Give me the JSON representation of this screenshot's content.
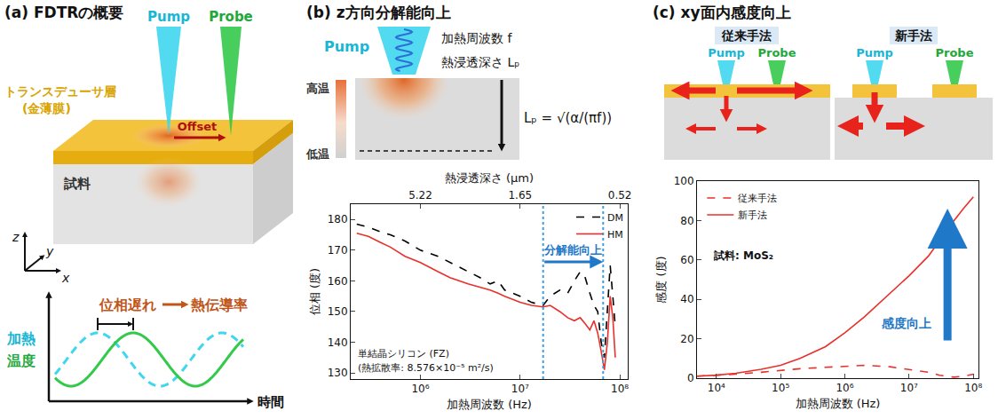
{
  "panels": {
    "a": {
      "title": "(a) FDTRの概要",
      "pump": "Pump",
      "probe": "Probe",
      "transducer": "トランスデューサ層",
      "transducer_note": "(金薄膜)",
      "offset": "Offset",
      "sample": "試料",
      "axes": [
        "z",
        "y",
        "x"
      ],
      "heating": "加熱",
      "temperature": "温度",
      "phase_lag": "位相遅れ",
      "conductivity": "熱伝導率",
      "time": "時間"
    },
    "b": {
      "title": "(b) z方向分解能向上",
      "pump": "Pump",
      "frequency": "加熱周波数 f",
      "depth": "熱浸透深さ Lₚ",
      "formula": "Lₚ = √(α/(πf))",
      "hot": "高温",
      "cold": "低温"
    },
    "c": {
      "title": "(c) xy面内感度向上",
      "conventional": "従来手法",
      "new": "新手法",
      "pump": "Pump",
      "probe": "Probe"
    }
  },
  "chart_data": [
    {
      "type": "line",
      "log": "x",
      "grid": false,
      "legend": "upper right",
      "xlabel": "加熱周波数 (Hz)",
      "ylabel": "位相 (度)",
      "x2label": "熱浸透深さ (μm)",
      "xlim": [
        200000,
        120000000
      ],
      "xticks": [
        {
          "value": 1000000,
          "label": "10⁶"
        },
        {
          "value": 10000000,
          "label": "10⁷"
        },
        {
          "value": 100000000,
          "label": "10⁸"
        }
      ],
      "x2ticks": [
        {
          "value": 1000000,
          "label": "5.22"
        },
        {
          "value": 10000000,
          "label": "1.65"
        },
        {
          "value": 100000000,
          "label": "0.52"
        }
      ],
      "ylim": [
        128,
        185
      ],
      "yticks": [
        130,
        140,
        150,
        160,
        170,
        180
      ],
      "x": [
        230000,
        300000,
        400000,
        500000,
        700000,
        1000000,
        1500000,
        2000000,
        3000000,
        4000000,
        5000000,
        6000000,
        7000000,
        10000000,
        13000000,
        17000000,
        20000000,
        25000000,
        30000000,
        35000000,
        40000000,
        45000000,
        50000000,
        55000000,
        60000000,
        65000000,
        70000000,
        75000000,
        80000000,
        85000000,
        90000000
      ],
      "series": [
        {
          "name": "DM",
          "color": "#000000",
          "line_style": "dashed",
          "values": [
            178.5,
            177.5,
            176,
            175,
            173,
            170,
            168,
            166,
            163,
            161,
            159,
            160,
            157,
            155,
            153,
            152,
            155,
            157,
            156,
            160,
            163,
            161,
            156,
            152,
            150,
            140,
            135,
            150,
            165,
            155,
            145
          ]
        },
        {
          "name": "HM",
          "color": "#e8312a",
          "line_style": "solid",
          "values": [
            175.5,
            174.5,
            172.5,
            171,
            168,
            166,
            163,
            161,
            159,
            158,
            157,
            156,
            155,
            153,
            152,
            151.5,
            152,
            150,
            148,
            147,
            148,
            146,
            144,
            147,
            143,
            137,
            131,
            140,
            155,
            148,
            135
          ]
        }
      ],
      "vlines": [
        17000000,
        68000000
      ],
      "annotations": [
        {
          "text": "分解能向上",
          "color": "#1f78c8"
        },
        {
          "text": "単結晶シリコン (FZ)"
        },
        {
          "text": "(熱拡散率: 8.576×10⁻⁵ m²/s)"
        }
      ]
    },
    {
      "type": "line",
      "log": "x",
      "grid": false,
      "legend": "upper left",
      "xlabel": "加熱周波数 (Hz)",
      "ylabel": "感度 (度)",
      "xlim": [
        5000,
        120000000
      ],
      "xticks": [
        {
          "value": 10000,
          "label": "10⁴"
        },
        {
          "value": 100000,
          "label": "10⁵"
        },
        {
          "value": 1000000,
          "label": "10⁶"
        },
        {
          "value": 10000000,
          "label": "10⁷"
        },
        {
          "value": 100000000,
          "label": "10⁸"
        }
      ],
      "ylim": [
        0,
        100
      ],
      "yticks": [
        0,
        20,
        40,
        60,
        80,
        100
      ],
      "x": [
        5000,
        10000,
        20000,
        50000,
        100000,
        200000,
        500000,
        1000000,
        2000000,
        5000000,
        10000000,
        20000000,
        30000000,
        50000000,
        70000000,
        100000000
      ],
      "series": [
        {
          "name": "従来手法",
          "color": "#e8312a",
          "line_style": "dashed",
          "values": [
            1,
            1.5,
            2,
            3,
            4,
            4.8,
            5.5,
            6,
            6.5,
            5.8,
            4.5,
            3,
            1.5,
            0.5,
            1,
            2
          ]
        },
        {
          "name": "新手法",
          "color": "#e8312a",
          "line_style": "solid",
          "values": [
            1,
            1.5,
            2.5,
            4.5,
            6.5,
            10,
            16,
            23,
            31,
            43,
            52,
            62,
            70,
            80,
            86,
            92
          ]
        }
      ],
      "annotations": [
        {
          "text": "試料: MoS₂"
        },
        {
          "text": "感度向上",
          "color": "#1f78c8"
        }
      ]
    }
  ]
}
